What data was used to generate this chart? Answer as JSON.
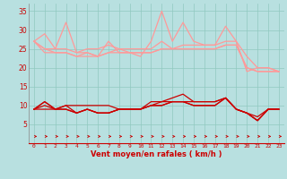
{
  "x": [
    0,
    1,
    2,
    3,
    4,
    5,
    6,
    7,
    8,
    9,
    10,
    11,
    12,
    13,
    14,
    15,
    16,
    17,
    18,
    19,
    20,
    21,
    22,
    23
  ],
  "rafales_1": [
    27,
    29,
    25,
    32,
    24,
    24,
    23,
    27,
    24,
    24,
    23,
    27,
    35,
    27,
    32,
    27,
    26,
    26,
    31,
    27,
    19,
    20,
    20,
    19
  ],
  "rafales_2": [
    27,
    25,
    25,
    25,
    24,
    25,
    25,
    26,
    25,
    25,
    25,
    25,
    27,
    25,
    26,
    26,
    26,
    26,
    27,
    27,
    23,
    20,
    20,
    19
  ],
  "rafales_3": [
    27,
    25,
    24,
    24,
    23,
    24,
    23,
    24,
    25,
    24,
    24,
    24,
    25,
    25,
    25,
    25,
    25,
    25,
    26,
    26,
    20,
    19,
    19,
    19
  ],
  "rafales_4": [
    27,
    24,
    24,
    24,
    23,
    23,
    23,
    24,
    24,
    24,
    24,
    24,
    25,
    25,
    25,
    25,
    25,
    25,
    26,
    26,
    20,
    19,
    19,
    19
  ],
  "vent_1": [
    9,
    11,
    9,
    10,
    10,
    10,
    10,
    10,
    9,
    9,
    9,
    11,
    11,
    12,
    13,
    11,
    11,
    11,
    12,
    9,
    8,
    7,
    9,
    9
  ],
  "vent_2": [
    9,
    11,
    9,
    10,
    8,
    9,
    8,
    8,
    9,
    9,
    9,
    10,
    11,
    11,
    11,
    11,
    11,
    11,
    12,
    9,
    8,
    6,
    9,
    9
  ],
  "vent_3": [
    9,
    10,
    9,
    9,
    8,
    9,
    8,
    8,
    9,
    9,
    9,
    10,
    10,
    11,
    11,
    10,
    10,
    10,
    12,
    9,
    8,
    6,
    9,
    9
  ],
  "vent_4": [
    9,
    9,
    9,
    9,
    8,
    9,
    8,
    8,
    9,
    9,
    9,
    10,
    10,
    11,
    11,
    10,
    10,
    10,
    12,
    9,
    8,
    6,
    9,
    9
  ],
  "bg_color": "#b8e0e0",
  "grid_color": "#90c8c0",
  "line_color_light": "#ff9999",
  "line_color_dark": "#cc0000",
  "xlabel": "Vent moyen/en rafales ( km/h )",
  "ylim": [
    0,
    37
  ],
  "yticks": [
    5,
    10,
    15,
    20,
    25,
    30,
    35
  ],
  "xticks": [
    0,
    1,
    2,
    3,
    4,
    5,
    6,
    7,
    8,
    9,
    10,
    11,
    12,
    13,
    14,
    15,
    16,
    17,
    18,
    19,
    20,
    21,
    22,
    23
  ]
}
